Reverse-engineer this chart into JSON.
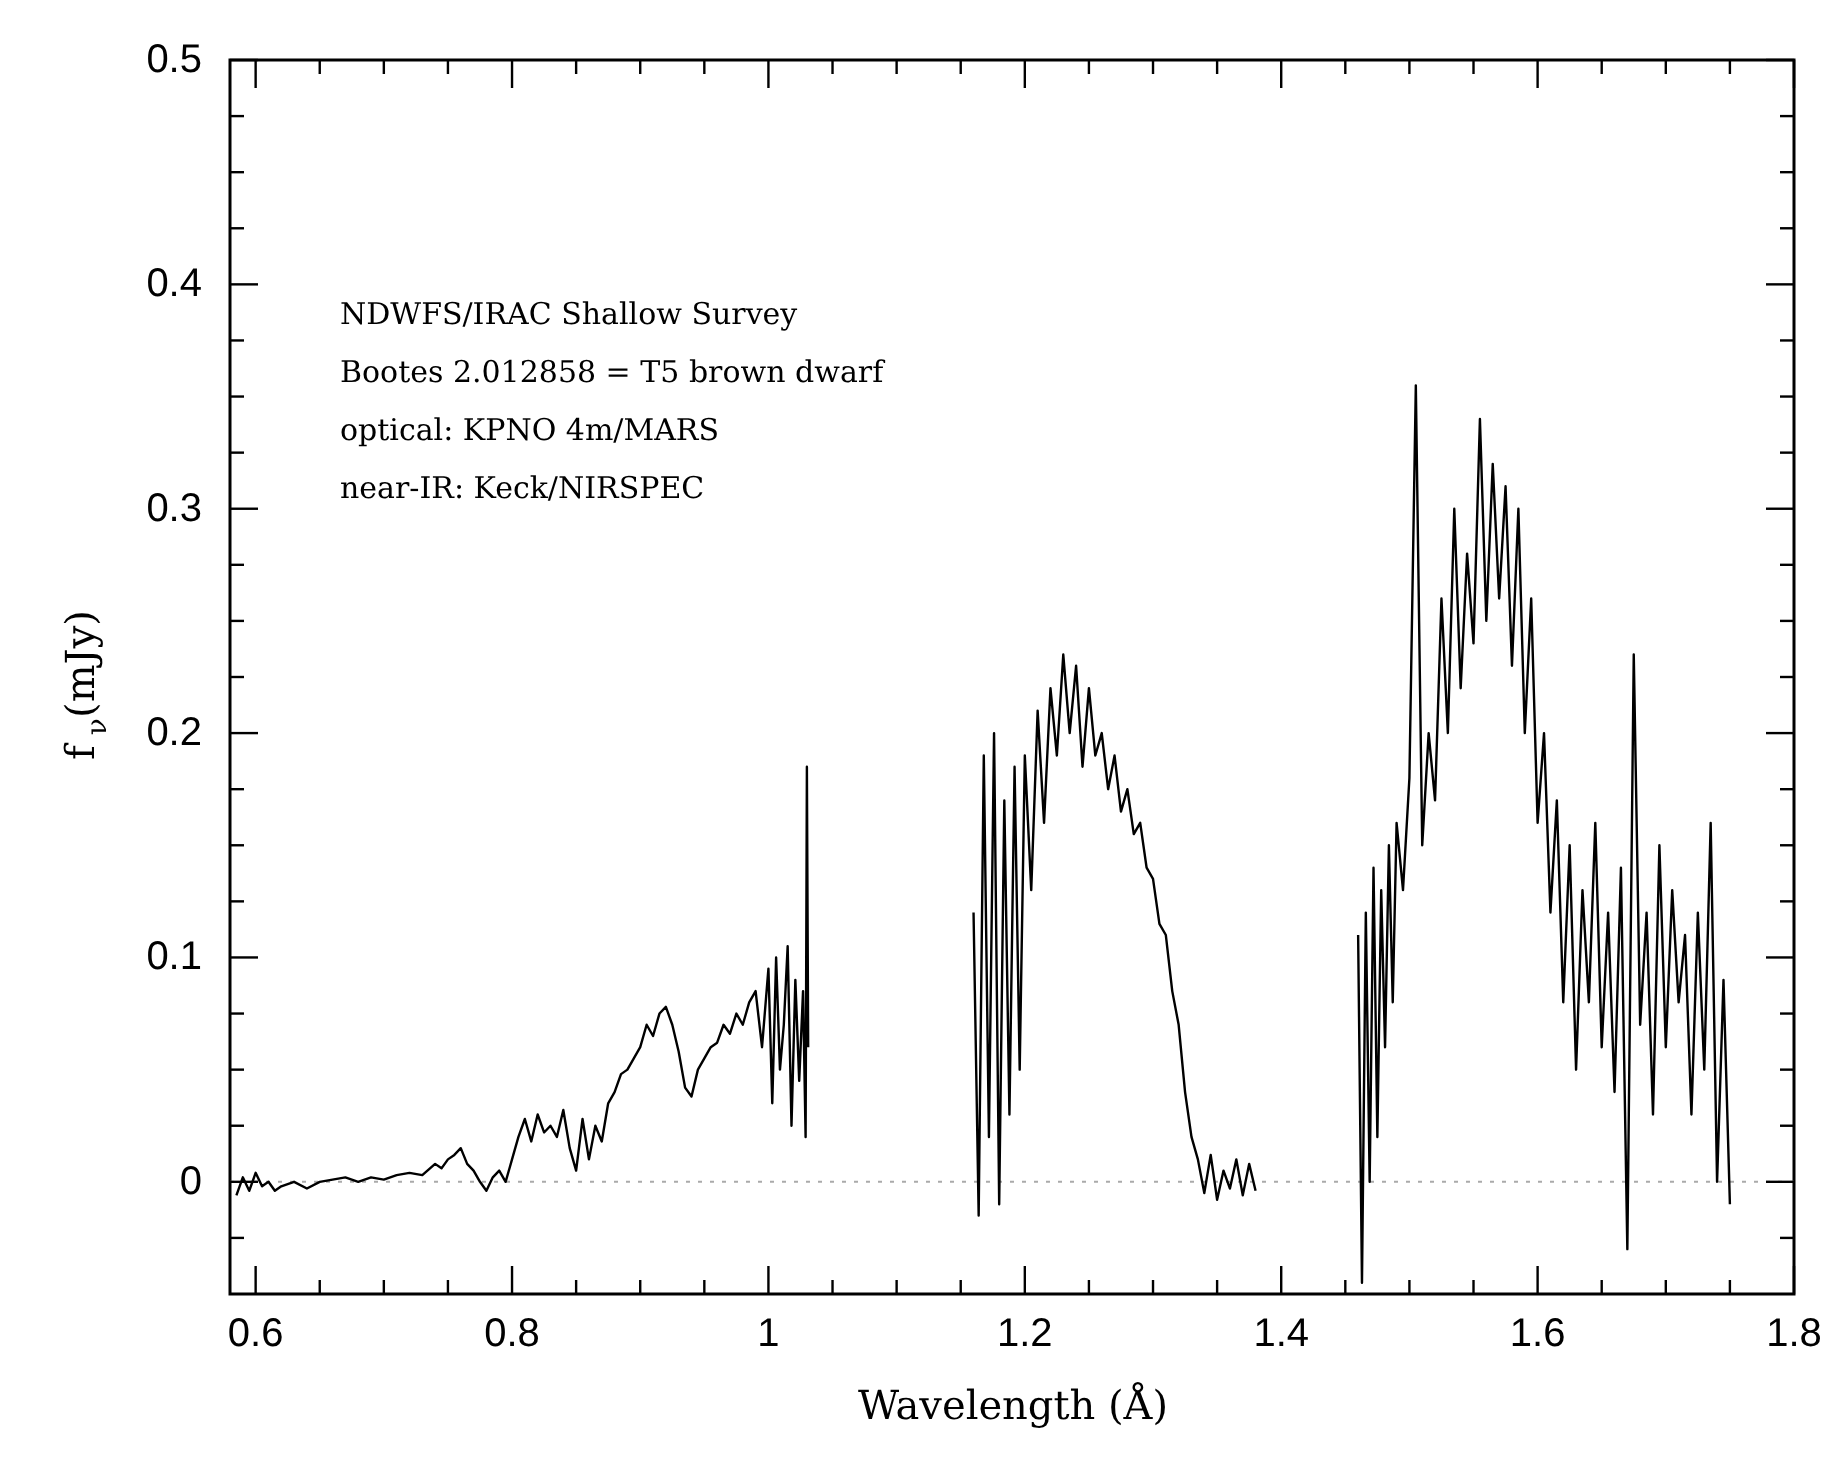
{
  "chart_data": {
    "type": "line",
    "xlabel": "Wavelength (Å)",
    "ylabel": "f$_{ν}$(mJy)",
    "annotations": [
      "NDWFS/IRAC Shallow Survey",
      "Bootes 2.012858 = T5 brown dwarf",
      "optical: KPNO 4m/MARS",
      "near-IR: Keck/NIRSPEC"
    ],
    "series": [
      {
        "color": "#000000",
        "x": [
          0.585,
          0.59,
          0.595,
          0.6,
          0.605,
          0.61,
          0.615,
          0.62,
          0.63,
          0.64,
          0.65,
          0.66,
          0.67,
          0.68,
          0.69,
          0.7,
          0.71,
          0.72,
          0.73,
          0.74,
          0.745,
          0.75,
          0.755,
          0.76,
          0.765,
          0.77,
          0.775,
          0.78,
          0.785,
          0.79,
          0.795,
          0.8,
          0.805,
          0.81,
          0.815,
          0.82,
          0.825,
          0.83,
          0.835,
          0.84,
          0.845,
          0.85,
          0.855,
          0.86,
          0.865,
          0.87,
          0.875,
          0.88,
          0.885,
          0.89,
          0.895,
          0.9,
          0.905,
          0.91,
          0.915,
          0.92,
          0.925,
          0.93,
          0.935,
          0.94,
          0.945,
          0.95,
          0.955,
          0.96,
          0.965,
          0.97,
          0.975,
          0.98,
          0.985,
          0.99,
          0.995,
          1.0,
          1.003,
          1.006,
          1.009,
          1.012,
          1.015,
          1.018,
          1.021,
          1.024,
          1.027,
          1.029,
          1.03,
          1.031
        ],
        "values": [
          -0.006,
          0.002,
          -0.004,
          0.004,
          -0.002,
          0.0,
          -0.004,
          -0.002,
          0.0,
          -0.003,
          0.0,
          0.001,
          0.002,
          0.0,
          0.002,
          0.001,
          0.003,
          0.004,
          0.003,
          0.008,
          0.006,
          0.01,
          0.012,
          0.015,
          0.008,
          0.005,
          0.0,
          -0.004,
          0.002,
          0.005,
          0.0,
          0.01,
          0.02,
          0.028,
          0.018,
          0.03,
          0.022,
          0.025,
          0.02,
          0.032,
          0.015,
          0.005,
          0.028,
          0.01,
          0.025,
          0.018,
          0.035,
          0.04,
          0.048,
          0.05,
          0.055,
          0.06,
          0.07,
          0.065,
          0.075,
          0.078,
          0.07,
          0.058,
          0.042,
          0.038,
          0.05,
          0.055,
          0.06,
          0.062,
          0.07,
          0.066,
          0.075,
          0.07,
          0.08,
          0.085,
          0.06,
          0.095,
          0.035,
          0.1,
          0.05,
          0.07,
          0.105,
          0.025,
          0.09,
          0.045,
          0.085,
          0.02,
          0.185,
          0.06
        ]
      },
      {
        "color": "#000000",
        "x": [
          1.16,
          1.164,
          1.168,
          1.172,
          1.176,
          1.18,
          1.184,
          1.188,
          1.192,
          1.196,
          1.2,
          1.205,
          1.21,
          1.215,
          1.22,
          1.225,
          1.23,
          1.235,
          1.24,
          1.245,
          1.25,
          1.255,
          1.26,
          1.265,
          1.27,
          1.275,
          1.28,
          1.285,
          1.29,
          1.295,
          1.3,
          1.305,
          1.31,
          1.315,
          1.32,
          1.325,
          1.33,
          1.335,
          1.34,
          1.345,
          1.35,
          1.355,
          1.36,
          1.365,
          1.37,
          1.375,
          1.38
        ],
        "values": [
          0.12,
          -0.015,
          0.19,
          0.02,
          0.2,
          -0.01,
          0.17,
          0.03,
          0.185,
          0.05,
          0.19,
          0.13,
          0.21,
          0.16,
          0.22,
          0.19,
          0.235,
          0.2,
          0.23,
          0.185,
          0.22,
          0.19,
          0.2,
          0.175,
          0.19,
          0.165,
          0.175,
          0.155,
          0.16,
          0.14,
          0.135,
          0.115,
          0.11,
          0.085,
          0.07,
          0.04,
          0.02,
          0.01,
          -0.005,
          0.012,
          -0.008,
          0.005,
          -0.003,
          0.01,
          -0.006,
          0.008,
          -0.004
        ]
      },
      {
        "color": "#000000",
        "x": [
          1.46,
          1.463,
          1.466,
          1.469,
          1.472,
          1.475,
          1.478,
          1.481,
          1.484,
          1.487,
          1.49,
          1.495,
          1.5,
          1.505,
          1.51,
          1.515,
          1.52,
          1.525,
          1.53,
          1.535,
          1.54,
          1.545,
          1.55,
          1.555,
          1.56,
          1.565,
          1.57,
          1.575,
          1.58,
          1.585,
          1.59,
          1.595,
          1.6,
          1.605,
          1.61,
          1.615,
          1.62,
          1.625,
          1.63,
          1.635,
          1.64,
          1.645,
          1.65,
          1.655,
          1.66,
          1.665,
          1.67,
          1.675,
          1.68,
          1.685,
          1.69,
          1.695,
          1.7,
          1.705,
          1.71,
          1.715,
          1.72,
          1.725,
          1.73,
          1.735,
          1.74,
          1.745,
          1.75
        ],
        "values": [
          0.11,
          -0.045,
          0.12,
          0.0,
          0.14,
          0.02,
          0.13,
          0.06,
          0.15,
          0.08,
          0.16,
          0.13,
          0.18,
          0.355,
          0.15,
          0.2,
          0.17,
          0.26,
          0.2,
          0.3,
          0.22,
          0.28,
          0.24,
          0.34,
          0.25,
          0.32,
          0.26,
          0.31,
          0.23,
          0.3,
          0.2,
          0.26,
          0.16,
          0.2,
          0.12,
          0.17,
          0.08,
          0.15,
          0.05,
          0.13,
          0.08,
          0.16,
          0.06,
          0.12,
          0.04,
          0.14,
          -0.03,
          0.235,
          0.07,
          0.12,
          0.03,
          0.15,
          0.06,
          0.13,
          0.08,
          0.11,
          0.03,
          0.12,
          0.05,
          0.16,
          0.0,
          0.09,
          -0.01
        ]
      }
    ],
    "xlim": [
      0.58,
      1.8
    ],
    "xticks": [
      0.6,
      {
        "value": 0.65,
        "label": null
      },
      {
        "value": 0.7,
        "label": null
      },
      {
        "value": 0.75,
        "label": null
      },
      0.8,
      {
        "value": 0.85,
        "label": null
      },
      {
        "value": 0.9,
        "label": null
      },
      {
        "value": 0.95,
        "label": null
      },
      1,
      {
        "value": 1.05,
        "label": null
      },
      {
        "value": 1.1,
        "label": null
      },
      {
        "value": 1.15,
        "label": null
      },
      1.2,
      {
        "value": 1.25,
        "label": null
      },
      {
        "value": 1.3,
        "label": null
      },
      {
        "value": 1.35,
        "label": null
      },
      1.4,
      {
        "value": 1.45,
        "label": null
      },
      {
        "value": 1.5,
        "label": null
      },
      {
        "value": 1.55,
        "label": null
      },
      1.6,
      {
        "value": 1.65,
        "label": null
      },
      {
        "value": 1.7,
        "label": null
      },
      {
        "value": 1.75,
        "label": null
      },
      1.8
    ],
    "ylim": [
      -0.05,
      0.5
    ],
    "yticks": [
      {
        "value": -0.025,
        "label": null
      },
      0,
      {
        "value": 0.025,
        "label": null
      },
      {
        "value": 0.05,
        "label": null
      },
      {
        "value": 0.075,
        "label": null
      },
      0.1,
      {
        "value": 0.125,
        "label": null
      },
      {
        "value": 0.15,
        "label": null
      },
      {
        "value": 0.175,
        "label": null
      },
      0.2,
      {
        "value": 0.225,
        "label": null
      },
      {
        "value": 0.25,
        "label": null
      },
      {
        "value": 0.275,
        "label": null
      },
      0.3,
      {
        "value": 0.325,
        "label": null
      },
      {
        "value": 0.35,
        "label": null
      },
      {
        "value": 0.375,
        "label": null
      },
      0.4,
      {
        "value": 0.425,
        "label": null
      },
      {
        "value": 0.45,
        "label": null
      },
      {
        "value": 0.475,
        "label": null
      },
      0.5
    ],
    "ref_lines": [
      {
        "axis": "y",
        "value": 0,
        "color": "#aaaaaa",
        "line_style": "dotted"
      }
    ],
    "grid": false,
    "marker": "none",
    "line_style": "solid"
  }
}
